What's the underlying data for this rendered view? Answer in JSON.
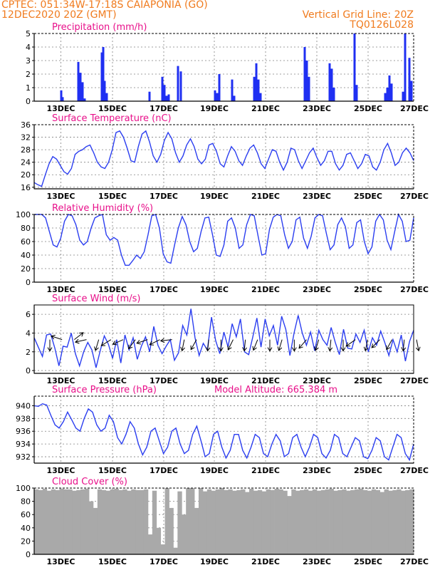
{
  "header": {
    "line1": "CPTEC:   051:34W-17:18S   CAIAPONIA (GO)",
    "line2": "12DEC2020 20Z (GMT)",
    "grid_line": "Vertical Grid Line: 20Z",
    "run_code": "TQ0126L028"
  },
  "x_ticks": [
    "13DEC",
    "15DEC",
    "17DEC",
    "19DEC",
    "21DEC",
    "23DEC",
    "25DEC",
    "27DEC"
  ],
  "colors": {
    "line": "#2b3ef0",
    "bar": "#1f2ff2",
    "cloud": "#a9a9a9",
    "header": "#f07b1e",
    "title": "#e8108a"
  },
  "chart_data": [
    {
      "type": "bar",
      "title": "Precipitation (mm/h)",
      "ylim": [
        0,
        5
      ],
      "yticks": [
        "0",
        "1",
        "2",
        "3",
        "4",
        "5"
      ],
      "xlim_days": [
        12.5,
        27.0
      ],
      "series": [
        {
          "values": [
            0.8,
            0.3,
            2.9,
            2.1,
            1.4,
            0.2,
            3.6,
            4.0,
            1.5,
            0.6,
            0.7,
            1.8,
            1.2,
            0.4,
            0.5,
            2.6,
            2.2,
            0.8,
            0.6,
            2.0,
            1.6,
            0.4,
            1.8,
            2.8,
            1.6,
            0.6,
            4.0,
            3.0,
            1.8,
            2.8,
            2.4,
            1.0,
            5.0,
            1.2,
            0.6,
            1.0,
            1.9,
            1.3,
            0.7,
            5.0,
            3.2,
            1.5
          ]
        }
      ]
    },
    {
      "type": "line",
      "title": "Surface Temperature (nC)",
      "ylim": [
        15.5,
        36
      ],
      "yticks": [
        "16",
        "20",
        "24",
        "28",
        "32",
        "36"
      ],
      "series": [
        {
          "values": [
            17.5,
            16.8,
            16.3,
            20.0,
            23.5,
            25.8,
            25.0,
            23.0,
            21.0,
            20.2,
            22.0,
            26.5,
            27.5,
            28.0,
            29.0,
            29.5,
            27.0,
            24.0,
            22.5,
            22.0,
            24.0,
            28.0,
            33.5,
            34.0,
            32.0,
            28.5,
            24.5,
            24.0,
            29.0,
            33.0,
            34.0,
            30.5,
            26.0,
            24.0,
            26.5,
            31.0,
            33.5,
            31.5,
            27.0,
            24.0,
            26.0,
            29.5,
            31.5,
            29.0,
            25.0,
            23.5,
            25.0,
            29.5,
            30.0,
            27.5,
            23.5,
            22.5,
            26.0,
            29.0,
            27.5,
            24.5,
            23.0,
            26.0,
            28.5,
            29.5,
            27.0,
            23.5,
            22.0,
            25.0,
            28.0,
            27.5,
            24.0,
            21.5,
            24.0,
            28.5,
            28.0,
            24.5,
            22.0,
            24.5,
            27.0,
            28.5,
            25.5,
            23.0,
            24.5,
            27.5,
            27.5,
            23.5,
            21.5,
            23.0,
            26.5,
            27.0,
            24.5,
            22.0,
            23.5,
            26.5,
            26.0,
            22.5,
            21.5,
            24.0,
            28.0,
            30.0,
            27.0,
            23.0,
            24.0,
            27.0,
            28.5,
            27.0,
            24.5
          ]
        }
      ]
    },
    {
      "type": "line",
      "title": "Relative Humidity (%)",
      "ylim": [
        0,
        100
      ],
      "yticks": [
        "0",
        "20",
        "40",
        "60",
        "80",
        "100"
      ],
      "series": [
        {
          "values": [
            100,
            100,
            100,
            95,
            75,
            55,
            52,
            65,
            90,
            100,
            98,
            85,
            62,
            55,
            60,
            80,
            95,
            98,
            100,
            70,
            62,
            66,
            62,
            40,
            25,
            25,
            32,
            40,
            35,
            45,
            70,
            98,
            100,
            80,
            42,
            30,
            28,
            55,
            80,
            97,
            85,
            60,
            45,
            50,
            75,
            95,
            96,
            70,
            40,
            38,
            55,
            90,
            95,
            80,
            50,
            55,
            85,
            100,
            98,
            68,
            40,
            42,
            78,
            96,
            100,
            98,
            70,
            50,
            60,
            92,
            96,
            65,
            50,
            68,
            95,
            100,
            98,
            72,
            48,
            55,
            85,
            95,
            82,
            50,
            55,
            88,
            92,
            60,
            42,
            52,
            90,
            100,
            92,
            62,
            48,
            75,
            100,
            90,
            60,
            62,
            95
          ]
        }
      ]
    },
    {
      "type": "line",
      "title": "Surface Wind (m/s)",
      "ylim": [
        -0.3,
        7
      ],
      "yticks": [
        "0",
        "2",
        "4",
        "6"
      ],
      "series": [
        {
          "values": [
            3.5,
            2.5,
            1.5,
            3.8,
            3.9,
            2.4,
            0.5,
            2.6,
            2.5,
            4.0,
            1.8,
            0.5,
            2.0,
            3.0,
            2.2,
            0.3,
            2.1,
            3.7,
            2.8,
            1.3,
            3.3,
            0.8,
            3.8,
            2.2,
            3.5,
            1.2,
            2.6,
            3.6,
            2.0,
            4.7,
            2.7,
            1.8,
            2.6,
            3.3,
            1.1,
            1.9,
            4.8,
            3.8,
            6.6,
            3.5,
            1.6,
            2.9,
            2.2,
            5.7,
            3.2,
            1.8,
            4.1,
            2.5,
            5.0,
            3.6,
            5.5,
            2.0,
            1.7,
            3.6,
            5.6,
            2.5,
            5.5,
            3.7,
            4.8,
            2.7,
            5.8,
            4.4,
            1.6,
            4.0,
            5.9,
            4.0,
            2.7,
            4.1,
            2.1,
            4.3,
            3.3,
            2.7,
            4.6,
            3.0,
            1.7,
            4.4,
            2.4,
            2.3,
            3.9,
            3.0,
            4.3,
            2.0,
            3.5,
            2.7,
            4.2,
            3.0,
            1.6,
            3.3,
            2.0,
            3.8,
            1.0,
            3.1,
            4.3
          ]
        }
      ],
      "arrows": [
        {
          "dx": 0.0,
          "dy": 1.0
        },
        {
          "dx": -0.9,
          "dy": -0.3
        },
        {
          "dx": 0.9,
          "dy": -0.7
        },
        {
          "dx": -0.9,
          "dy": 0.2
        },
        {
          "dx": -0.3,
          "dy": 1.0
        },
        {
          "dx": -0.8,
          "dy": 0.5
        },
        {
          "dx": -0.9,
          "dy": 0.4
        },
        {
          "dx": -0.6,
          "dy": 0.8
        },
        {
          "dx": -0.9,
          "dy": 0.3
        },
        {
          "dx": -1.0,
          "dy": 0.5
        },
        {
          "dx": -0.9,
          "dy": 0.1
        },
        {
          "dx": -0.2,
          "dy": 1.0
        },
        {
          "dx": -0.5,
          "dy": 0.9
        },
        {
          "dx": -0.1,
          "dy": 1.0
        },
        {
          "dx": 0.0,
          "dy": 1.0
        },
        {
          "dx": -0.5,
          "dy": 1.0
        },
        {
          "dx": -0.1,
          "dy": 1.0
        },
        {
          "dx": -0.4,
          "dy": 1.0
        },
        {
          "dx": 0.0,
          "dy": 1.0
        },
        {
          "dx": -0.3,
          "dy": 1.0
        },
        {
          "dx": 0.0,
          "dy": 1.0
        },
        {
          "dx": -0.6,
          "dy": 0.7
        },
        {
          "dx": -0.3,
          "dy": 1.0
        },
        {
          "dx": -0.1,
          "dy": 1.0
        },
        {
          "dx": 0.0,
          "dy": 1.0
        },
        {
          "dx": -0.7,
          "dy": 0.5
        },
        {
          "dx": -0.2,
          "dy": 1.0
        },
        {
          "dx": -0.6,
          "dy": 0.6
        },
        {
          "dx": -0.5,
          "dy": 0.9
        },
        {
          "dx": -0.1,
          "dy": 1.0
        },
        {
          "dx": 0.2,
          "dy": 1.0
        }
      ]
    },
    {
      "type": "line",
      "title": "Surface Pressure (hPa)",
      "subtitle": "Model Altitude: 665.384 m",
      "ylim": [
        931.0,
        941.5
      ],
      "yticks": [
        "932",
        "934",
        "936",
        "938",
        "940"
      ],
      "series": [
        {
          "values": [
            940.0,
            939.9,
            940.3,
            940.1,
            938.5,
            937.0,
            936.5,
            937.5,
            939.0,
            937.8,
            936.5,
            936.0,
            938.0,
            939.5,
            939.0,
            937.0,
            936.0,
            936.5,
            938.5,
            937.5,
            935.0,
            934.0,
            935.5,
            937.5,
            936.5,
            934.0,
            932.3,
            933.5,
            936.0,
            936.5,
            934.5,
            932.5,
            933.5,
            936.0,
            936.5,
            934.0,
            932.5,
            933.0,
            935.5,
            936.8,
            934.5,
            932.0,
            932.5,
            935.5,
            936.0,
            933.5,
            931.8,
            933.0,
            935.5,
            935.5,
            933.0,
            931.8,
            933.5,
            935.5,
            935.0,
            932.5,
            932.0,
            934.0,
            935.5,
            934.5,
            932.0,
            932.5,
            935.0,
            935.5,
            933.5,
            932.0,
            933.5,
            935.5,
            935.0,
            932.5,
            931.8,
            933.0,
            935.5,
            935.0,
            932.5,
            932.0,
            933.5,
            935.0,
            934.5,
            932.0,
            931.7,
            933.0,
            935.0,
            934.5,
            932.0,
            931.5,
            933.5,
            935.5,
            935.0,
            932.5,
            931.5,
            934.0
          ]
        }
      ]
    },
    {
      "type": "bar",
      "title": "Cloud Cover (%)",
      "ylim": [
        0,
        100
      ],
      "yticks": [
        "0",
        "20",
        "40",
        "60",
        "80",
        "100"
      ],
      "series": [
        {
          "values": [
            98,
            97,
            99,
            96,
            98,
            97,
            99,
            98,
            98,
            96,
            97,
            98,
            99,
            80,
            70,
            98,
            97,
            96,
            98,
            99,
            97,
            98,
            96,
            98,
            97,
            97,
            98,
            30,
            96,
            40,
            15,
            100,
            70,
            10,
            95,
            60,
            100,
            100,
            70,
            100,
            95,
            98,
            96,
            98,
            100,
            97,
            98,
            96,
            97,
            98,
            94,
            99,
            96,
            97,
            95,
            98,
            97,
            99,
            98,
            96,
            88,
            98,
            96,
            97,
            98,
            96,
            98,
            96,
            97,
            98,
            99,
            96,
            97,
            98,
            96,
            97,
            98,
            99,
            97,
            96,
            98,
            97,
            94,
            98,
            96,
            97,
            98,
            96,
            97,
            98
          ]
        }
      ]
    }
  ]
}
